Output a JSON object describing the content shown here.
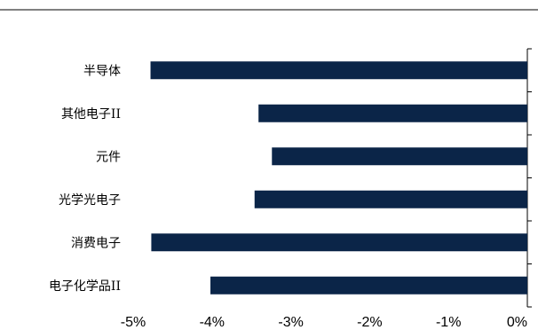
{
  "chart_data": {
    "type": "bar",
    "orientation": "horizontal",
    "categories": [
      "半导体",
      "其他电子II",
      "元件",
      "光学光电子",
      "消费电子",
      "电子化学品II"
    ],
    "values": [
      -4.78,
      -3.41,
      -3.24,
      -3.46,
      -4.77,
      -4.02
    ],
    "xlim": [
      -5,
      0
    ],
    "xticks": [
      -5,
      -4,
      -3,
      -2,
      -1,
      0
    ],
    "tick_labels": [
      "-5%",
      "-4%",
      "-3%",
      "-2%",
      "-1%",
      "0%"
    ],
    "title": "",
    "xlabel": "",
    "ylabel": "",
    "bar_color": "#0b2548",
    "grid": false,
    "legend": "none"
  }
}
